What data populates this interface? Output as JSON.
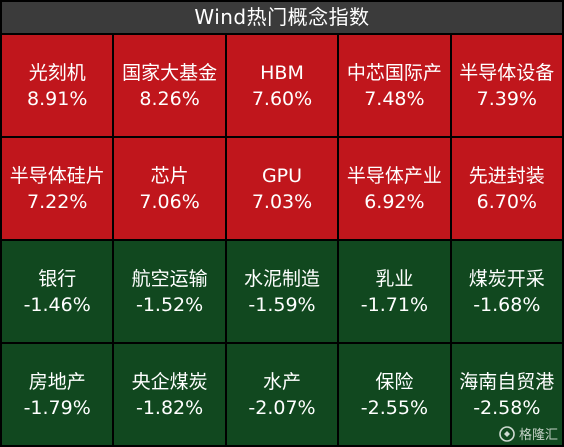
{
  "title": "Wind热门概念指数",
  "colors": {
    "up": "#c0161c",
    "down": "#11481f",
    "title_bg": "#3b3b3b"
  },
  "concepts": [
    {
      "name": "光刻机",
      "change": "8.91%",
      "trend": "up"
    },
    {
      "name": "国家大基金",
      "change": "8.26%",
      "trend": "up"
    },
    {
      "name": "HBM",
      "change": "7.60%",
      "trend": "up"
    },
    {
      "name": "中芯国际产",
      "change": "7.48%",
      "trend": "up"
    },
    {
      "name": "半导体设备",
      "change": "7.39%",
      "trend": "up"
    },
    {
      "name": "半导体硅片",
      "change": "7.22%",
      "trend": "up"
    },
    {
      "name": "芯片",
      "change": "7.06%",
      "trend": "up"
    },
    {
      "name": "GPU",
      "change": "7.03%",
      "trend": "up"
    },
    {
      "name": "半导体产业",
      "change": "6.92%",
      "trend": "up"
    },
    {
      "name": "先进封装",
      "change": "6.70%",
      "trend": "up"
    },
    {
      "name": "银行",
      "change": "-1.46%",
      "trend": "down"
    },
    {
      "name": "航空运输",
      "change": "-1.52%",
      "trend": "down"
    },
    {
      "name": "水泥制造",
      "change": "-1.59%",
      "trend": "down"
    },
    {
      "name": "乳业",
      "change": "-1.71%",
      "trend": "down"
    },
    {
      "name": "煤炭开采",
      "change": "-1.68%",
      "trend": "down"
    },
    {
      "name": "房地产",
      "change": "-1.79%",
      "trend": "down"
    },
    {
      "name": "央企煤炭",
      "change": "-1.82%",
      "trend": "down"
    },
    {
      "name": "水产",
      "change": "-2.07%",
      "trend": "down"
    },
    {
      "name": "保险",
      "change": "-2.55%",
      "trend": "down"
    },
    {
      "name": "海南自贸港",
      "change": "-2.58%",
      "trend": "down"
    }
  ],
  "watermark": {
    "icon": "gelonghui-logo-icon",
    "text": "格隆汇"
  }
}
